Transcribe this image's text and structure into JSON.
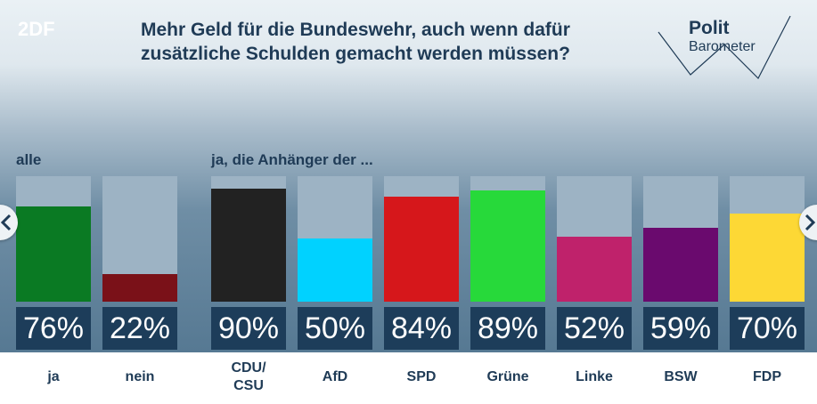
{
  "header": {
    "logo": "2DF",
    "title_line1": "Mehr Geld für die Bundeswehr, auch wenn dafür",
    "title_line2": "zusätzliche Schulden gemacht werden müssen?",
    "brand_name": "Polit",
    "brand_sub": "Barometer"
  },
  "chart_data": {
    "type": "bar",
    "group_labels": [
      "alle",
      "ja, die Anhänger der ..."
    ],
    "categories": [
      "ja",
      "nein",
      "CDU/\nCSU",
      "AfD",
      "SPD",
      "Grüne",
      "Linke",
      "BSW",
      "FDP"
    ],
    "values": [
      76,
      22,
      90,
      50,
      84,
      89,
      52,
      59,
      70
    ],
    "value_labels": [
      "76%",
      "22%",
      "90%",
      "50%",
      "84%",
      "89%",
      "52%",
      "59%",
      "70%"
    ],
    "colors": [
      "#0a7a23",
      "#7a1118",
      "#222222",
      "#00d2ff",
      "#d6171b",
      "#27d93a",
      "#bf226b",
      "#6a0a6e",
      "#fdd835"
    ],
    "ylim": [
      0,
      100
    ]
  },
  "nav": {
    "prev_icon": "chevron-left-icon",
    "next_icon": "chevron-right-icon"
  }
}
